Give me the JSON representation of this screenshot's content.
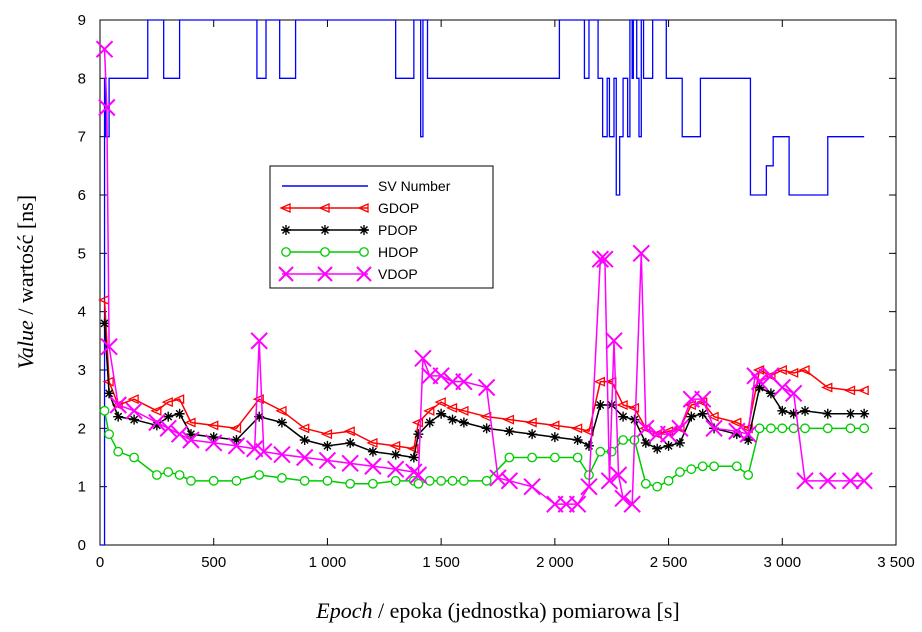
{
  "chart_data": {
    "type": "line",
    "title": "",
    "xlabel_italic": "Epoch",
    "xlabel_rest": " / epoka (jednostka) pomiarowa [s]",
    "ylabel_italic": "Value",
    "ylabel_rest": " / wartość [ns]",
    "xlim": [
      0,
      3500
    ],
    "ylim": [
      0,
      9
    ],
    "xticks": [
      0,
      500,
      1000,
      1500,
      2000,
      2500,
      3000,
      3500
    ],
    "xtick_labels": [
      "0",
      "500",
      "1 000",
      "1 500",
      "2 000",
      "2 500",
      "3 000",
      "3 500"
    ],
    "yticks": [
      0,
      1,
      2,
      3,
      4,
      5,
      6,
      7,
      8,
      9
    ],
    "ytick_labels": [
      "0",
      "1",
      "2",
      "3",
      "4",
      "5",
      "6",
      "7",
      "8",
      "9"
    ],
    "grid": false,
    "legend_position": "center-left",
    "series": [
      {
        "name": "SV Number",
        "color": "#0000ff",
        "marker": "none",
        "step": true,
        "x": [
          0,
          20,
          25,
          40,
          50,
          60,
          210,
          280,
          350,
          690,
          730,
          790,
          860,
          1300,
          1380,
          1410,
          1420,
          1440,
          2020,
          2130,
          2150,
          2190,
          2210,
          2230,
          2240,
          2260,
          2270,
          2285,
          2300,
          2320,
          2330,
          2340,
          2345,
          2360,
          2370,
          2380,
          2390,
          2430,
          2490,
          2560,
          2640,
          2860,
          2880,
          2930,
          2960,
          3030,
          3200,
          3240,
          3360
        ],
        "y": [
          0,
          8,
          7,
          8,
          8,
          8,
          9,
          8,
          9,
          8,
          9,
          8,
          9,
          8,
          9,
          7,
          9,
          8,
          9,
          8,
          9,
          8,
          7,
          8,
          7,
          8,
          6,
          7,
          8,
          7,
          9,
          8,
          9,
          8,
          7,
          9,
          8,
          9,
          8,
          7,
          8,
          6,
          6,
          6.5,
          7,
          6,
          7,
          7,
          7
        ]
      },
      {
        "name": "GDOP",
        "color": "#ff0000",
        "marker": "triangle",
        "x": [
          20,
          40,
          80,
          150,
          250,
          300,
          350,
          400,
          500,
          600,
          700,
          800,
          900,
          1000,
          1100,
          1200,
          1300,
          1380,
          1400,
          1450,
          1500,
          1550,
          1600,
          1700,
          1800,
          1900,
          2000,
          2100,
          2150,
          2200,
          2250,
          2300,
          2350,
          2400,
          2450,
          2500,
          2550,
          2600,
          2650,
          2700,
          2800,
          2850,
          2900,
          2950,
          3000,
          3050,
          3100,
          3200,
          3300,
          3360
        ],
        "y": [
          4.2,
          2.8,
          2.4,
          2.5,
          2.3,
          2.45,
          2.5,
          2.1,
          2.05,
          2.0,
          2.5,
          2.3,
          2.0,
          1.9,
          1.95,
          1.75,
          1.7,
          1.65,
          2.1,
          2.3,
          2.45,
          2.35,
          2.3,
          2.2,
          2.15,
          2.1,
          2.05,
          2.0,
          1.95,
          2.8,
          2.8,
          2.4,
          2.35,
          2.0,
          1.9,
          1.95,
          2.0,
          2.4,
          2.45,
          2.2,
          2.1,
          2.0,
          3.0,
          2.9,
          3.0,
          2.95,
          3.0,
          2.7,
          2.65,
          2.65
        ]
      },
      {
        "name": "PDOP",
        "color": "#000000",
        "marker": "star",
        "x": [
          20,
          40,
          80,
          150,
          250,
          300,
          350,
          400,
          500,
          600,
          700,
          800,
          900,
          1000,
          1100,
          1200,
          1300,
          1380,
          1400,
          1450,
          1500,
          1550,
          1600,
          1700,
          1800,
          1900,
          2000,
          2100,
          2150,
          2200,
          2250,
          2300,
          2350,
          2400,
          2450,
          2500,
          2550,
          2600,
          2650,
          2700,
          2800,
          2850,
          2900,
          2950,
          3000,
          3050,
          3100,
          3200,
          3300,
          3360
        ],
        "y": [
          3.8,
          2.6,
          2.2,
          2.15,
          2.05,
          2.2,
          2.25,
          1.9,
          1.85,
          1.8,
          2.2,
          2.1,
          1.8,
          1.7,
          1.75,
          1.6,
          1.55,
          1.5,
          1.9,
          2.1,
          2.25,
          2.15,
          2.1,
          2.0,
          1.95,
          1.9,
          1.85,
          1.8,
          1.7,
          2.4,
          2.4,
          2.2,
          2.15,
          1.75,
          1.65,
          1.7,
          1.75,
          2.2,
          2.25,
          2.0,
          1.9,
          1.8,
          2.7,
          2.6,
          2.3,
          2.25,
          2.3,
          2.25,
          2.25,
          2.25
        ]
      },
      {
        "name": "HDOP",
        "color": "#00cc00",
        "marker": "circle",
        "x": [
          20,
          40,
          80,
          150,
          250,
          300,
          350,
          400,
          500,
          600,
          700,
          800,
          900,
          1000,
          1100,
          1200,
          1300,
          1380,
          1400,
          1450,
          1500,
          1550,
          1600,
          1700,
          1800,
          1900,
          2000,
          2100,
          2150,
          2200,
          2250,
          2300,
          2350,
          2400,
          2450,
          2500,
          2550,
          2600,
          2650,
          2700,
          2800,
          2850,
          2900,
          2950,
          3000,
          3050,
          3100,
          3200,
          3300,
          3360
        ],
        "y": [
          2.3,
          1.9,
          1.6,
          1.5,
          1.2,
          1.25,
          1.2,
          1.1,
          1.1,
          1.1,
          1.2,
          1.15,
          1.1,
          1.1,
          1.05,
          1.05,
          1.1,
          1.1,
          1.05,
          1.1,
          1.1,
          1.1,
          1.1,
          1.1,
          1.5,
          1.5,
          1.5,
          1.5,
          1.2,
          1.6,
          1.6,
          1.8,
          1.8,
          1.05,
          1.0,
          1.1,
          1.25,
          1.3,
          1.35,
          1.35,
          1.35,
          1.2,
          2.0,
          2.0,
          2.0,
          2.0,
          2.0,
          2.0,
          2.0,
          2.0
        ]
      },
      {
        "name": "VDOP",
        "color": "#ff00ff",
        "marker": "x",
        "x": [
          20,
          30,
          40,
          80,
          150,
          250,
          300,
          350,
          400,
          500,
          600,
          680,
          700,
          720,
          800,
          900,
          1000,
          1100,
          1200,
          1300,
          1380,
          1400,
          1420,
          1450,
          1500,
          1550,
          1600,
          1700,
          1750,
          1800,
          1900,
          2000,
          2050,
          2100,
          2150,
          2200,
          2220,
          2240,
          2260,
          2280,
          2300,
          2340,
          2380,
          2400,
          2450,
          2500,
          2550,
          2600,
          2650,
          2700,
          2800,
          2850,
          2880,
          2900,
          2950,
          3000,
          3050,
          3100,
          3200,
          3300,
          3360
        ],
        "y": [
          8.5,
          7.5,
          3.4,
          2.4,
          2.3,
          2.1,
          2.0,
          1.9,
          1.8,
          1.75,
          1.7,
          1.65,
          3.5,
          1.6,
          1.55,
          1.5,
          1.45,
          1.4,
          1.35,
          1.3,
          1.25,
          1.2,
          3.2,
          2.9,
          2.9,
          2.8,
          2.8,
          2.7,
          1.15,
          1.1,
          1.0,
          0.7,
          0.7,
          0.7,
          1.0,
          4.9,
          4.9,
          1.1,
          3.5,
          1.2,
          0.8,
          0.7,
          5.0,
          2.0,
          1.9,
          1.9,
          2.0,
          2.5,
          2.5,
          2.0,
          1.95,
          1.9,
          2.9,
          2.8,
          2.9,
          2.7,
          2.6,
          1.1,
          1.1,
          1.1,
          1.1
        ]
      }
    ]
  }
}
